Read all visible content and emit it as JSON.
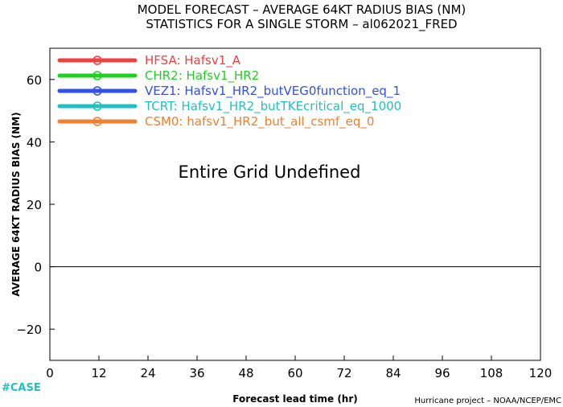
{
  "chart_data": {
    "type": "line",
    "title": "MODEL FORECAST – AVERAGE 64KT RADIUS BIAS (NM)",
    "subtitle": "STATISTICS FOR A SINGLE STORM – al062021_FRED",
    "xlabel": "Forecast lead time (hr)",
    "ylabel": "AVERAGE 64KT RADIUS BIAS (NM)",
    "xlim": [
      0,
      120
    ],
    "ylim": [
      -30,
      70
    ],
    "x_ticks": [
      0,
      12,
      24,
      36,
      48,
      60,
      72,
      84,
      96,
      108,
      120
    ],
    "y_ticks": [
      -20,
      0,
      20,
      40,
      60
    ],
    "y_tick_labels": [
      "−20",
      "0",
      "20",
      "40",
      "60"
    ],
    "zero_line": 0,
    "grid": false,
    "legend_position": "top-left",
    "annotation": "Entire Grid Undefined",
    "series": [
      {
        "name": "HFSA: Hafsv1_A",
        "color": "#f04040",
        "values": []
      },
      {
        "name": "CHR2: Hafsv1_HR2",
        "color": "#20d020",
        "values": []
      },
      {
        "name": "VEZ1: Hafsv1_HR2_butVEG0function_eq_1",
        "color": "#3050f0",
        "values": []
      },
      {
        "name": "TCRT: Hafsv1_HR2_butTKEcritical_eq_1000",
        "color": "#20c0c0",
        "values": []
      },
      {
        "name": "CSM0: hafsv1_HR2_but_all_csmf_eq_0",
        "color": "#f08030",
        "values": []
      }
    ]
  },
  "footer": {
    "left": "#CASE",
    "right": "Hurricane project – NOAA/NCEP/EMC"
  }
}
